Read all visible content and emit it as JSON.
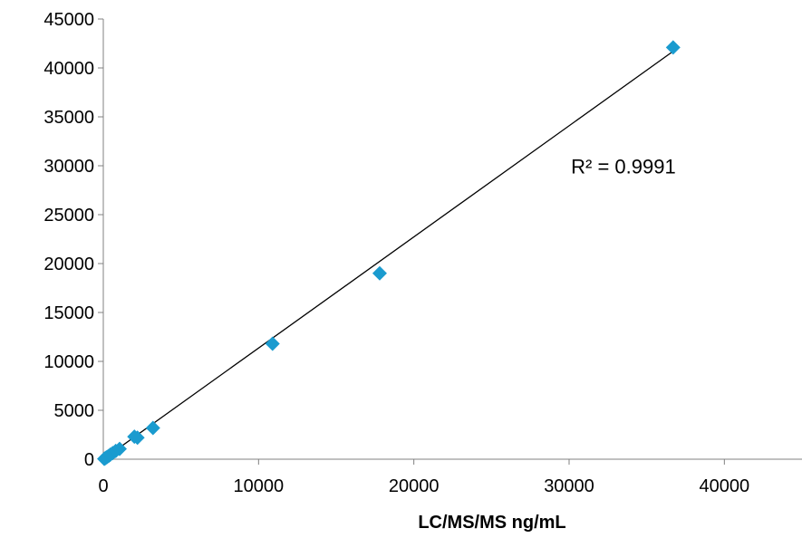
{
  "chart_data": {
    "type": "scatter",
    "title": "",
    "xlabel": "LC/MS/MS ng/mL",
    "ylabel": "",
    "xlim": [
      0,
      45000
    ],
    "ylim": [
      0,
      45000
    ],
    "x_ticks": [
      0,
      10000,
      20000,
      30000,
      40000
    ],
    "y_ticks": [
      0,
      5000,
      10000,
      15000,
      20000,
      25000,
      30000,
      35000,
      40000,
      45000
    ],
    "x_tick_labels": [
      "0",
      "10000",
      "20000",
      "30000",
      "40000"
    ],
    "y_tick_labels": [
      "0",
      "5000",
      "10000",
      "15000",
      "20000",
      "25000",
      "30000",
      "35000",
      "40000",
      "45000"
    ],
    "grid": false,
    "legend": "none",
    "marker_color": "#1A9BCF",
    "trendline_color": "#000000",
    "points": [
      {
        "x": 60,
        "y": 40
      },
      {
        "x": 120,
        "y": 90
      },
      {
        "x": 180,
        "y": 160
      },
      {
        "x": 250,
        "y": 230
      },
      {
        "x": 350,
        "y": 340
      },
      {
        "x": 450,
        "y": 460
      },
      {
        "x": 600,
        "y": 620
      },
      {
        "x": 800,
        "y": 850
      },
      {
        "x": 1050,
        "y": 1050
      },
      {
        "x": 2000,
        "y": 2300
      },
      {
        "x": 2200,
        "y": 2200
      },
      {
        "x": 3200,
        "y": 3200
      },
      {
        "x": 10900,
        "y": 11800
      },
      {
        "x": 17800,
        "y": 19000
      },
      {
        "x": 36700,
        "y": 42100
      }
    ],
    "trendline": {
      "x": [
        0,
        36700
      ],
      "y": [
        -100,
        41700
      ]
    },
    "annotation": {
      "text": "R² = 0.9991",
      "x": 31000,
      "y": 28000
    }
  }
}
